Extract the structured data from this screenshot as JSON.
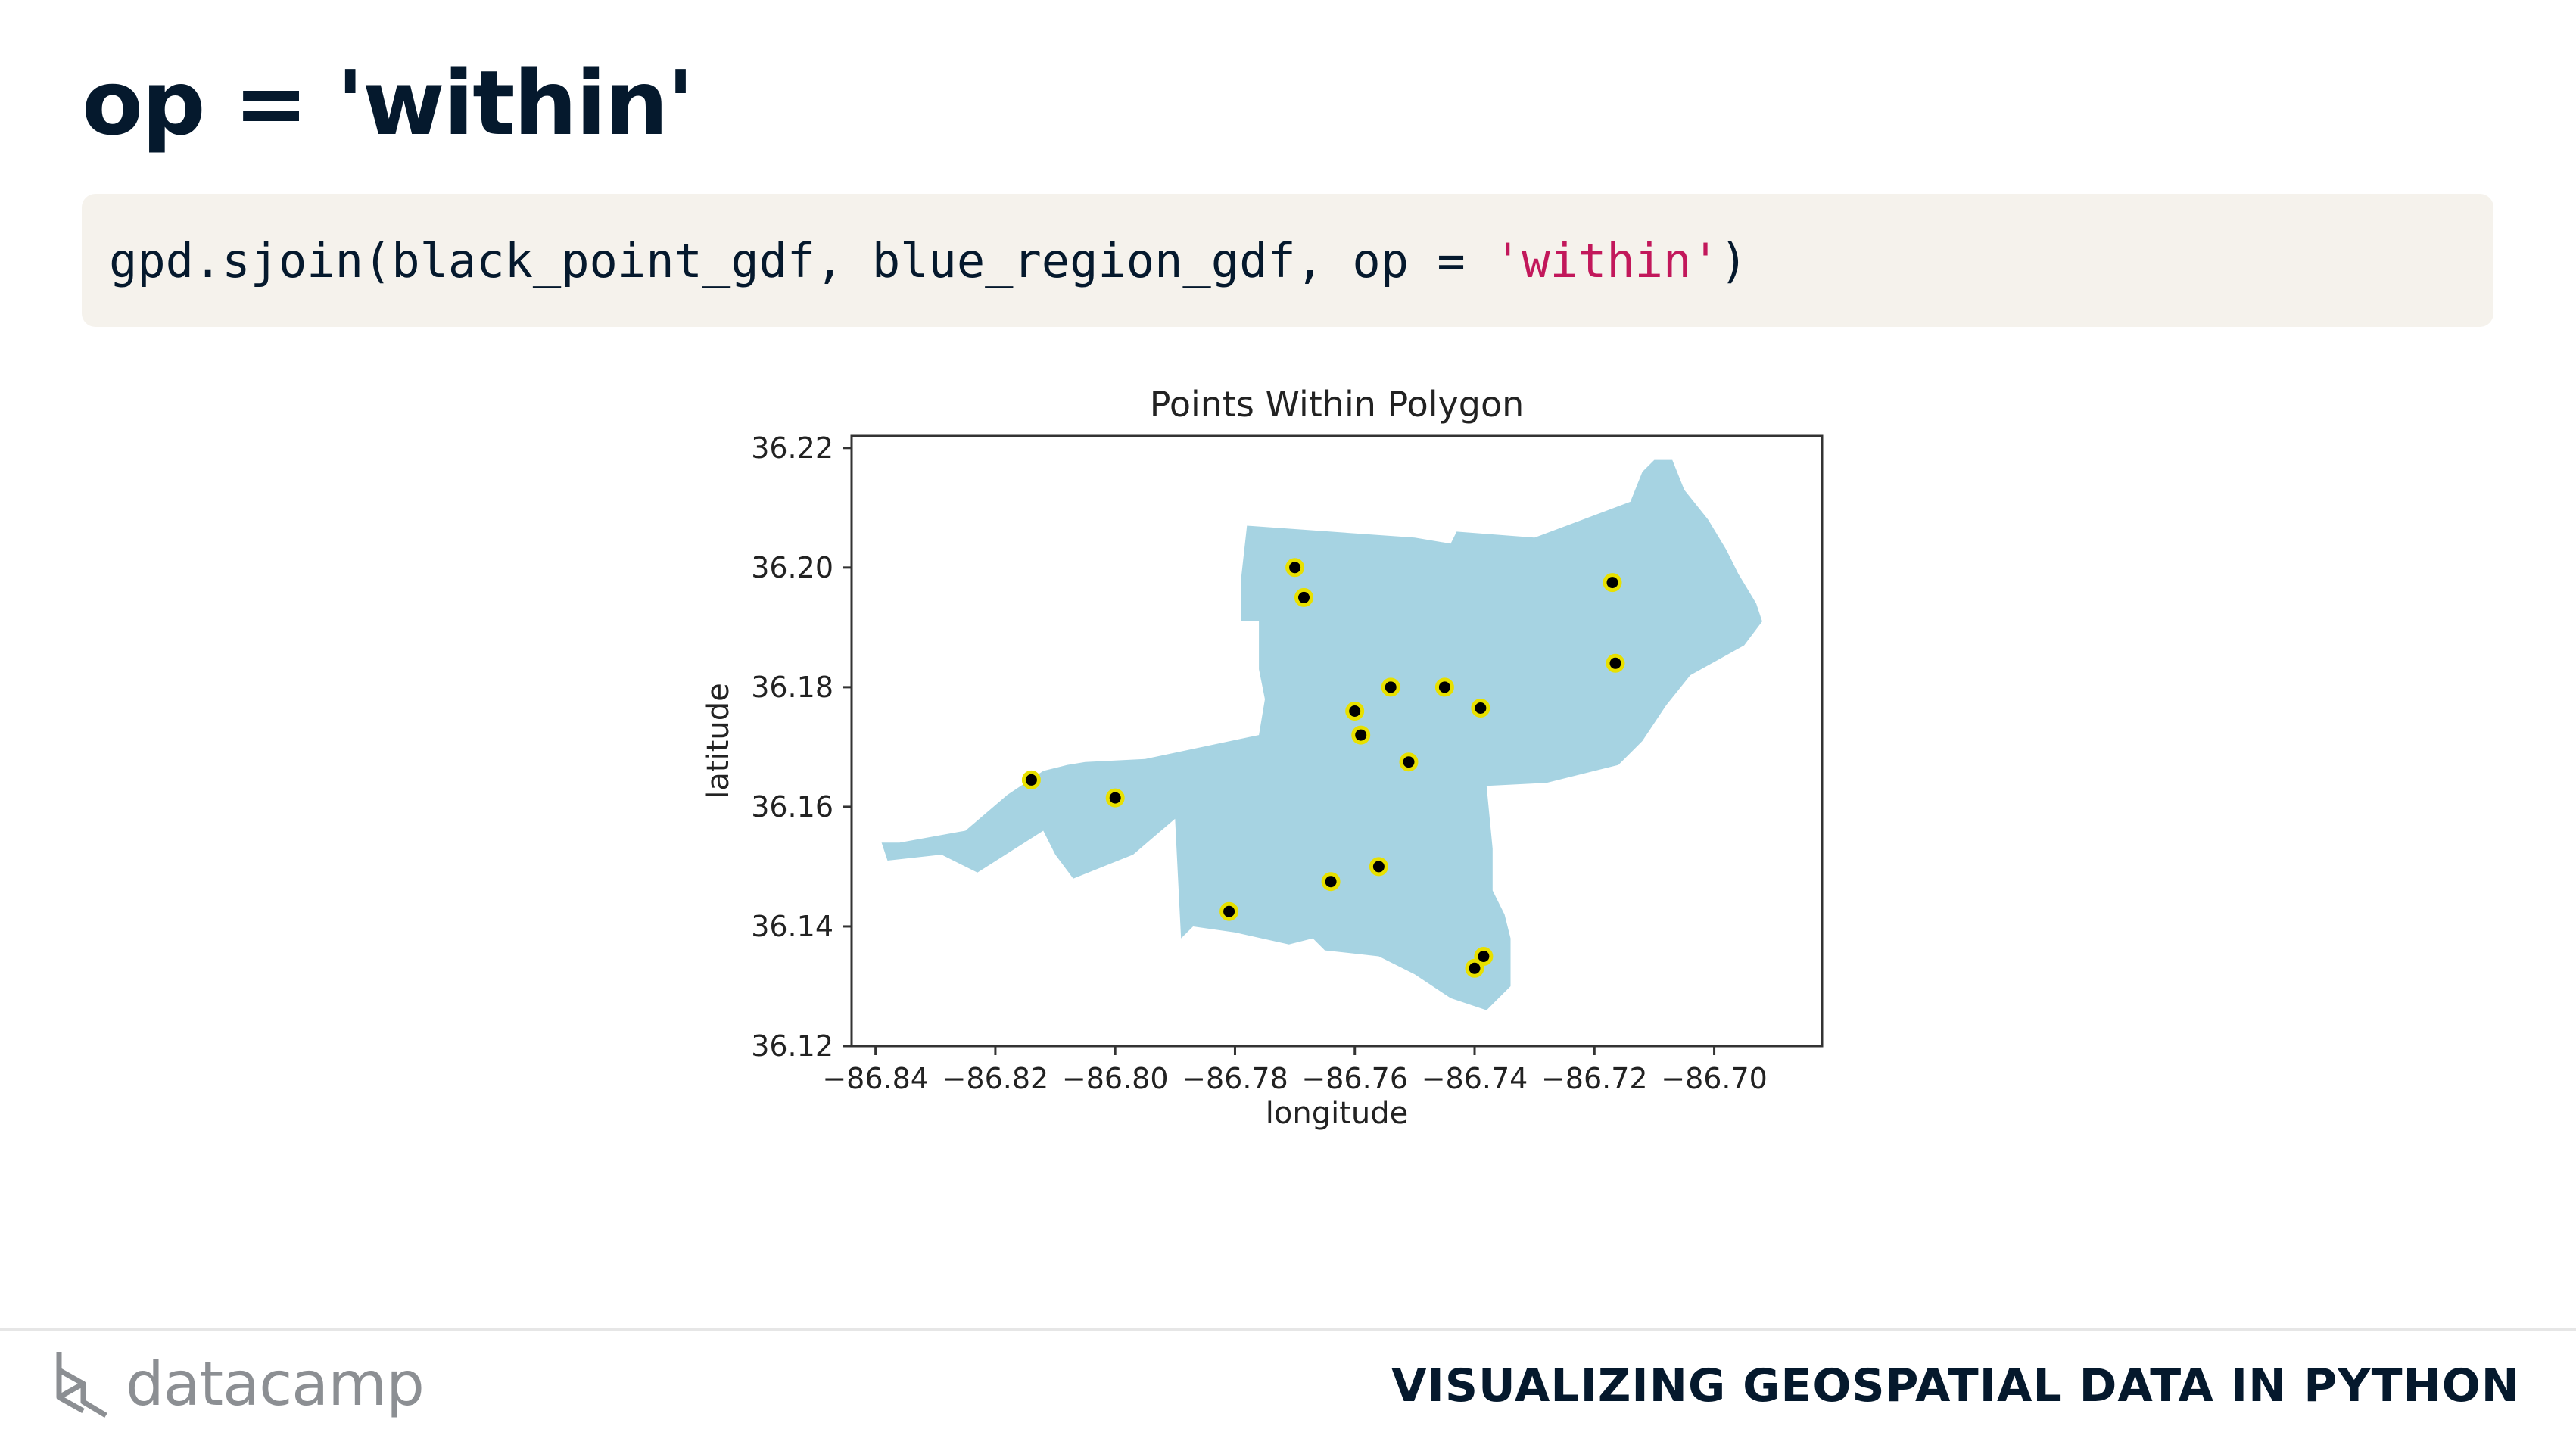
{
  "slide": {
    "title": "op = 'within'",
    "course_title": "VISUALIZING GEOSPATIAL DATA IN PYTHON",
    "logo_text": "datacamp",
    "logo_icon": "datacamp-logo-icon"
  },
  "code": {
    "prefix": "gpd.sjoin(black_point_gdf, blue_region_gdf, op = ",
    "string": "'within'",
    "suffix": ")"
  },
  "chart_data": {
    "type": "scatter",
    "title": "Points Within Polygon",
    "xlabel": "longitude",
    "ylabel": "latitude",
    "xlim": [
      -86.844,
      -86.682
    ],
    "ylim": [
      36.12,
      36.222
    ],
    "xticks": [
      -86.84,
      -86.82,
      -86.8,
      -86.78,
      -86.76,
      -86.74,
      -86.72,
      -86.7
    ],
    "xtick_labels": [
      "−86.84",
      "−86.82",
      "−86.80",
      "−86.78",
      "−86.76",
      "−86.74",
      "−86.72",
      "−86.70"
    ],
    "yticks": [
      36.12,
      36.14,
      36.16,
      36.18,
      36.2,
      36.22
    ],
    "ytick_labels": [
      "36.12",
      "36.14",
      "36.16",
      "36.18",
      "36.20",
      "36.22"
    ],
    "grid": false,
    "region_color": "#a6d3e2",
    "point_color": "#000000",
    "point_edge_color": "#e8e000",
    "region_polygon": [
      [
        -86.836,
        36.154
      ],
      [
        -86.825,
        36.156
      ],
      [
        -86.818,
        36.162
      ],
      [
        -86.812,
        36.166
      ],
      [
        -86.808,
        36.167
      ],
      [
        -86.805,
        36.1675
      ],
      [
        -86.795,
        36.168
      ],
      [
        -86.776,
        36.172
      ],
      [
        -86.775,
        36.178
      ],
      [
        -86.776,
        36.183
      ],
      [
        -86.776,
        36.191
      ],
      [
        -86.779,
        36.191
      ],
      [
        -86.779,
        36.198
      ],
      [
        -86.778,
        36.207
      ],
      [
        -86.75,
        36.205
      ],
      [
        -86.744,
        36.204
      ],
      [
        -86.743,
        36.206
      ],
      [
        -86.73,
        36.205
      ],
      [
        -86.722,
        36.208
      ],
      [
        -86.714,
        36.211
      ],
      [
        -86.712,
        36.216
      ],
      [
        -86.71,
        36.218
      ],
      [
        -86.707,
        36.218
      ],
      [
        -86.705,
        36.213
      ],
      [
        -86.701,
        36.208
      ],
      [
        -86.698,
        36.203
      ],
      [
        -86.696,
        36.199
      ],
      [
        -86.693,
        36.194
      ],
      [
        -86.692,
        36.191
      ],
      [
        -86.695,
        36.187
      ],
      [
        -86.704,
        36.182
      ],
      [
        -86.708,
        36.177
      ],
      [
        -86.712,
        36.171
      ],
      [
        -86.716,
        36.167
      ],
      [
        -86.728,
        36.164
      ],
      [
        -86.738,
        36.1635
      ],
      [
        -86.737,
        36.153
      ],
      [
        -86.737,
        36.146
      ],
      [
        -86.735,
        36.142
      ],
      [
        -86.734,
        36.138
      ],
      [
        -86.734,
        36.13
      ],
      [
        -86.738,
        36.126
      ],
      [
        -86.744,
        36.128
      ],
      [
        -86.75,
        36.132
      ],
      [
        -86.756,
        36.135
      ],
      [
        -86.765,
        36.136
      ],
      [
        -86.767,
        36.138
      ],
      [
        -86.771,
        36.137
      ],
      [
        -86.78,
        36.139
      ],
      [
        -86.787,
        36.14
      ],
      [
        -86.789,
        36.138
      ],
      [
        -86.79,
        36.158
      ],
      [
        -86.797,
        36.152
      ],
      [
        -86.807,
        36.148
      ],
      [
        -86.81,
        36.152
      ],
      [
        -86.812,
        36.156
      ],
      [
        -86.823,
        36.149
      ],
      [
        -86.829,
        36.152
      ],
      [
        -86.838,
        36.151
      ],
      [
        -86.839,
        36.154
      ]
    ],
    "points": [
      {
        "x": -86.77,
        "y": 36.2
      },
      {
        "x": -86.7685,
        "y": 36.195
      },
      {
        "x": -86.717,
        "y": 36.1975
      },
      {
        "x": -86.7165,
        "y": 36.184
      },
      {
        "x": -86.754,
        "y": 36.18
      },
      {
        "x": -86.745,
        "y": 36.18
      },
      {
        "x": -86.739,
        "y": 36.1765
      },
      {
        "x": -86.76,
        "y": 36.176
      },
      {
        "x": -86.759,
        "y": 36.172
      },
      {
        "x": -86.751,
        "y": 36.1675
      },
      {
        "x": -86.814,
        "y": 36.1645
      },
      {
        "x": -86.8,
        "y": 36.1615
      },
      {
        "x": -86.756,
        "y": 36.15
      },
      {
        "x": -86.764,
        "y": 36.1475
      },
      {
        "x": -86.781,
        "y": 36.1425
      },
      {
        "x": -86.7385,
        "y": 36.135
      },
      {
        "x": -86.74,
        "y": 36.133
      }
    ]
  }
}
